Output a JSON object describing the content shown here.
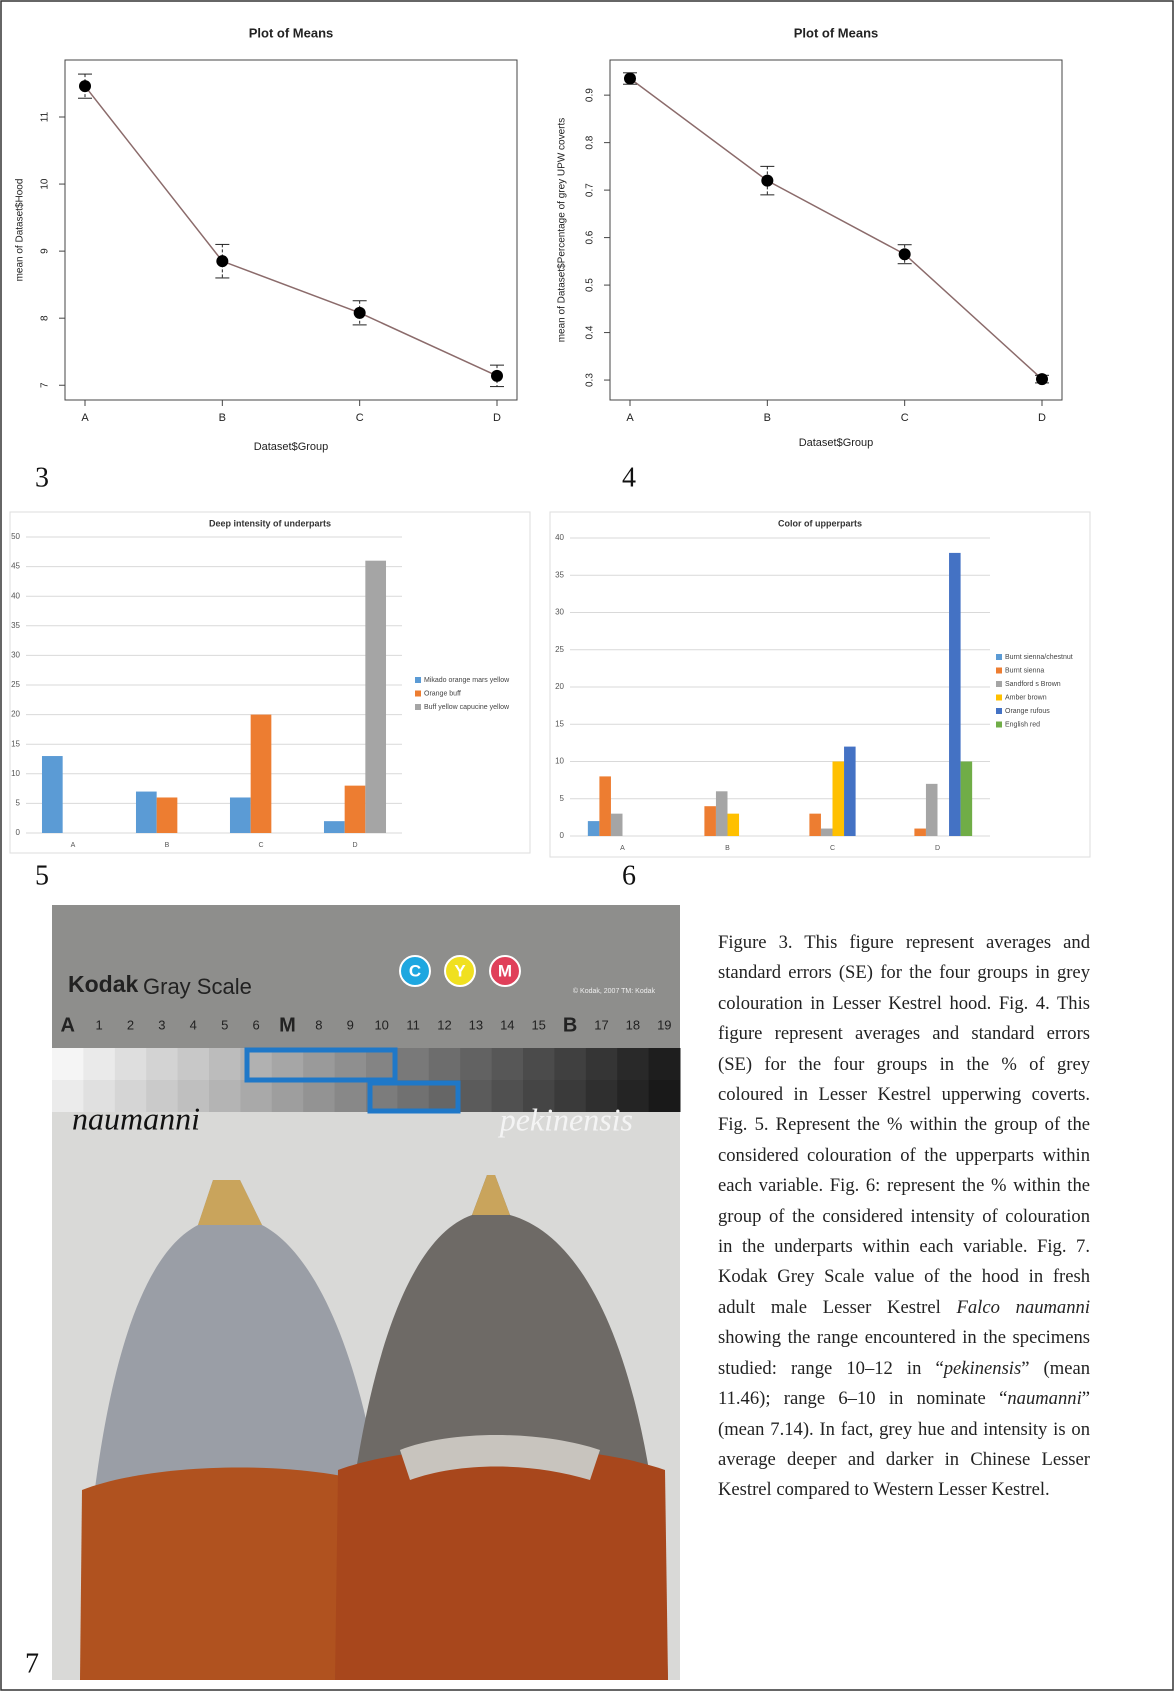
{
  "chart_data": [
    {
      "type": "line",
      "title": "Plot of Means",
      "x_label": "Dataset$Group",
      "y_label": "mean of Dataset$Hood",
      "categories": [
        "A",
        "B",
        "C",
        "D"
      ],
      "values": [
        11.46,
        8.85,
        8.08,
        7.14
      ],
      "errors": [
        0.18,
        0.25,
        0.18,
        0.16
      ],
      "color": "#8b6b6b",
      "ylim": [
        6.78,
        11.85
      ],
      "yticks": [
        7,
        8,
        9,
        10,
        11
      ]
    },
    {
      "type": "line",
      "title": "Plot of Means",
      "x_label": "Dataset$Group",
      "y_label": "mean of Dataset$Percentage of grey UPW coverts",
      "categories": [
        "A",
        "B",
        "C",
        "D"
      ],
      "values": [
        0.935,
        0.72,
        0.565,
        0.302
      ],
      "errors": [
        0.012,
        0.03,
        0.02,
        0.008
      ],
      "color": "#8b6b6b",
      "ylim": [
        0.258,
        0.974
      ],
      "yticks": [
        0.3,
        0.4,
        0.5,
        0.6,
        0.7,
        0.8,
        0.9
      ]
    },
    {
      "type": "bar",
      "title": "Deep intensity of underparts",
      "categories": [
        "A",
        "B",
        "C",
        "D"
      ],
      "series": [
        {
          "name": "Mikado orange mars yellow",
          "color": "#5b9bd5",
          "values": [
            13,
            7,
            6,
            2
          ]
        },
        {
          "name": "Orange buff",
          "color": "#ed7d31",
          "values": [
            0,
            6,
            20,
            8
          ]
        },
        {
          "name": "Buff yellow capucine yellow",
          "color": "#a5a5a5",
          "values": [
            0,
            0,
            0,
            46
          ]
        }
      ],
      "ylim": [
        0,
        50
      ],
      "yticks": [
        0,
        5,
        10,
        15,
        20,
        25,
        30,
        35,
        40,
        45,
        50
      ],
      "grid": true
    },
    {
      "type": "bar",
      "title": "Color of upperparts",
      "categories": [
        "A",
        "B",
        "C",
        "D"
      ],
      "series": [
        {
          "name": "Burnt sienna/chestnut",
          "color": "#5b9bd5",
          "values": [
            2,
            0,
            0,
            0
          ]
        },
        {
          "name": "Burnt sienna",
          "color": "#ed7d31",
          "values": [
            8,
            4,
            3,
            1
          ]
        },
        {
          "name": "Sandford s Brown",
          "color": "#a5a5a5",
          "values": [
            3,
            6,
            1,
            7
          ]
        },
        {
          "name": "Amber brown",
          "color": "#ffc000",
          "values": [
            0,
            3,
            10,
            0
          ]
        },
        {
          "name": "Orange rufous",
          "color": "#4472c4",
          "values": [
            0,
            0,
            12,
            38
          ]
        },
        {
          "name": "English red",
          "color": "#70ad47",
          "values": [
            0,
            0,
            0,
            10
          ]
        }
      ],
      "ylim": [
        0,
        40
      ],
      "yticks": [
        0,
        5,
        10,
        15,
        20,
        25,
        30,
        35,
        40
      ],
      "grid": true
    }
  ],
  "figure_labels": [
    "3",
    "4",
    "5",
    "6",
    "7"
  ],
  "photo": {
    "brand": "Kodak",
    "product": "Gray Scale",
    "badges": [
      "C",
      "Y",
      "M"
    ],
    "copyright": "© Kodak, 2007 TM: Kodak",
    "scale_labels": [
      "A",
      "1",
      "2",
      "3",
      "4",
      "5",
      "6",
      "M",
      "8",
      "9",
      "10",
      "11",
      "12",
      "13",
      "14",
      "15",
      "B",
      "17",
      "18",
      "19"
    ],
    "left_label": "naumanni",
    "right_label": "pekinensis"
  },
  "caption": [
    "Figure 3. This figure represent averages and standard errors (SE) for the four groups in grey colouration in Lesser Kestrel hood. Fig. 4. This figure represent averages and standard errors (SE) for the four groups in the % of grey coloured in Lesser Kestrel upperwing coverts. Fig. 5. Represent the % within the group of the considered colouration of the upperparts within each variable. Fig. 6: represent the % within the group of the considered intensity of colouration in the underparts within each variable. Fig. 7. Kodak Grey Scale value of the hood in fresh adult male Lesser Kestrel ",
    "Falco naumanni",
    " showing the range encountered in the specimens studied: range 10–12 in “",
    "pekinensis",
    "” (mean 11.46); range 6–10 in nominate “",
    "naumanni",
    "” (mean 7.14). In fact, grey hue and intensity is on average deeper and darker in Chinese Lesser Kestrel compared to Western Lesser Kestrel."
  ]
}
